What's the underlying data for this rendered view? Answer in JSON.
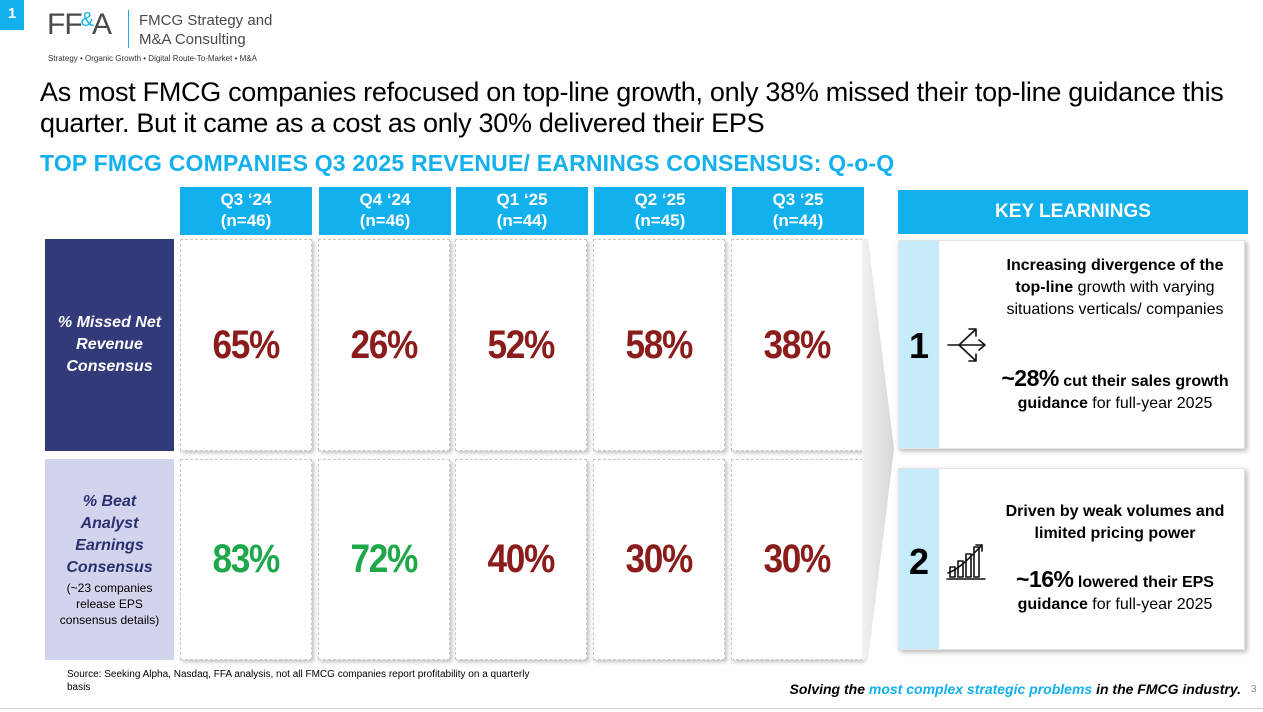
{
  "slide_badge": "1",
  "logo": {
    "mark_left": "FF",
    "mark_amp": "&",
    "mark_right": "A",
    "company": "FMCG Strategy and\nM&A Consulting",
    "tagline": "Strategy • Organic Growth • Digital Route-To-Market • M&A"
  },
  "headline": "As most FMCG companies refocused on top-line growth, only 38% missed their top-line guidance this quarter. But it came as a cost as only 30% delivered their EPS",
  "subheadline": "TOP FMCG COMPANIES Q3 2025 REVENUE/ EARNINGS CONSENSUS: Q-o-Q",
  "columns": [
    {
      "quarter": "Q3 ‘24",
      "n": "(n=46)"
    },
    {
      "quarter": "Q4 ‘24",
      "n": "(n=46)"
    },
    {
      "quarter": "Q1 ‘25",
      "n": "(n=44)"
    },
    {
      "quarter": "Q2 ‘25",
      "n": "(n=45)"
    },
    {
      "quarter": "Q3 ‘25",
      "n": "(n=44)"
    }
  ],
  "rows": [
    {
      "label": "% Missed Net Revenue Consensus",
      "note": "",
      "values": [
        "65%",
        "26%",
        "52%",
        "58%",
        "38%"
      ],
      "tones": [
        "red",
        "red",
        "red",
        "red",
        "red"
      ]
    },
    {
      "label": "% Beat Analyst Earnings Consensus",
      "note": "(~23 companies release EPS consensus details)",
      "values": [
        "83%",
        "72%",
        "40%",
        "30%",
        "30%"
      ],
      "tones": [
        "green",
        "green",
        "red",
        "red",
        "red"
      ]
    }
  ],
  "colors": {
    "accent": "#12b0ec",
    "navy": "#333a7a",
    "lavender": "#d2d4ee",
    "red_value": "#8b1c1c",
    "green_value": "#1fa84a",
    "number_strip": "#c6ebfa"
  },
  "key_learnings": {
    "header": "KEY LEARNINGS",
    "items": [
      {
        "number": "1",
        "icon": "diverging-arrows-icon",
        "line1_bold": "Increasing divergence of the top-line",
        "line1_rest": " growth with varying situations verticals/ companies",
        "stat_big": "~28%",
        "stat_bold": " cut their sales growth guidance",
        "stat_rest": " for full-year 2025"
      },
      {
        "number": "2",
        "icon": "bar-chart-growth-icon",
        "line1_bold": "Driven by weak volumes and limited pricing power",
        "line1_rest": "",
        "stat_big": "~16%",
        "stat_bold": " lowered their EPS guidance",
        "stat_rest": " for full-year 2025"
      }
    ]
  },
  "source": "Source: Seeking Alpha, Nasdaq, FFA analysis, not all FMCG companies report profitability on a quarterly basis",
  "footer": {
    "pre": "Solving the ",
    "highlight": "most complex strategic problems",
    "post": " in the FMCG industry."
  },
  "page_number": "3"
}
